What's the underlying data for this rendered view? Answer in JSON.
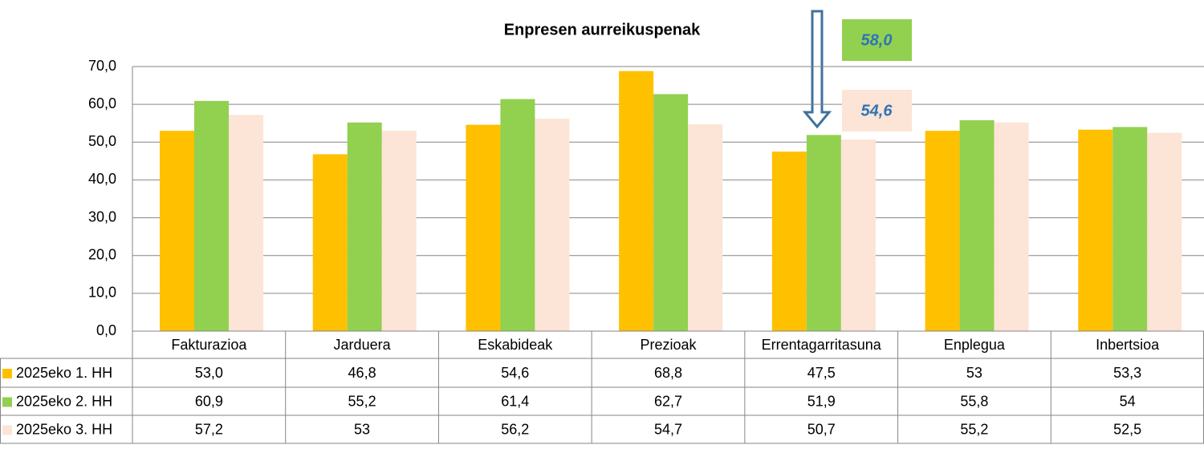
{
  "chart_data": {
    "type": "bar",
    "title": "Enpresen aurreikuspenak",
    "categories": [
      "Fakturazioa",
      "Jarduera",
      "Eskabideak",
      "Prezioak",
      "Errentagarritasuna",
      "Enplegua",
      "Inbertsioa"
    ],
    "series": [
      {
        "name": "2025eko 1. HH",
        "color": "#ffc000",
        "values": [
          53.0,
          46.8,
          54.6,
          68.8,
          47.5,
          53,
          53.3
        ],
        "value_labels": [
          "53,0",
          "46,8",
          "54,6",
          "68,8",
          "47,5",
          "53",
          "53,3"
        ]
      },
      {
        "name": "2025eko 2. HH",
        "color": "#92d050",
        "values": [
          60.9,
          55.2,
          61.4,
          62.7,
          51.9,
          55.8,
          54
        ],
        "value_labels": [
          "60,9",
          "55,2",
          "61,4",
          "62,7",
          "51,9",
          "55,8",
          "54"
        ]
      },
      {
        "name": "2025eko 3. HH",
        "color": "#fce4d6",
        "values": [
          57.2,
          53,
          56.2,
          54.7,
          50.7,
          55.2,
          52.5
        ],
        "value_labels": [
          "57,2",
          "53",
          "56,2",
          "54,7",
          "50,7",
          "55,2",
          "52,5"
        ]
      }
    ],
    "ylim": [
      0,
      70
    ],
    "yticks": [
      {
        "value": 0,
        "label": "0,0"
      },
      {
        "value": 10,
        "label": "10,0"
      },
      {
        "value": 20,
        "label": "20,0"
      },
      {
        "value": 30,
        "label": "30,0"
      },
      {
        "value": 40,
        "label": "40,0"
      },
      {
        "value": 50,
        "label": "50,0"
      },
      {
        "value": 60,
        "label": "60,0"
      },
      {
        "value": 70,
        "label": "70,0"
      }
    ],
    "grid": true,
    "annotations": [
      {
        "text": "58,0",
        "color": "#92d050"
      },
      {
        "text": "54,6",
        "color": "#fce4d6"
      }
    ]
  }
}
